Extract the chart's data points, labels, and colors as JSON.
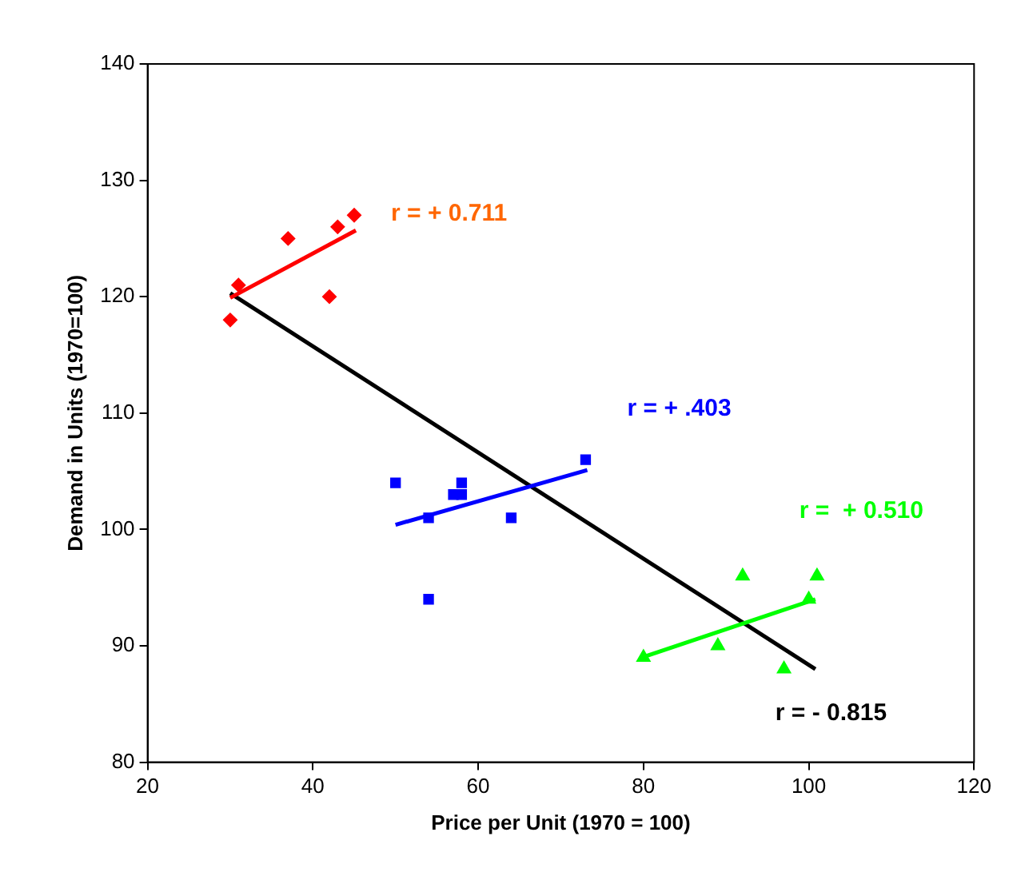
{
  "chart_data": {
    "type": "scatter",
    "xlabel": "Price per Unit (1970 = 100)",
    "ylabel": "Demand in Units (1970=100)",
    "xlim": [
      20,
      120
    ],
    "xticks": [
      20,
      40,
      60,
      80,
      100,
      120
    ],
    "ylim": [
      80,
      140
    ],
    "yticks": [
      80,
      90,
      100,
      110,
      120,
      130,
      140
    ],
    "grid": false,
    "legend": false,
    "series": [
      {
        "marker": "diamond",
        "color": "#ff0000",
        "x": [
          30,
          31,
          37,
          42,
          43,
          45
        ],
        "values": [
          118,
          121,
          125,
          120,
          126,
          127
        ]
      },
      {
        "marker": "square",
        "color": "#0000ff",
        "x": [
          50,
          54,
          54,
          57,
          58,
          58,
          64,
          73
        ],
        "values": [
          104,
          101,
          94,
          103,
          104,
          103,
          101,
          106
        ]
      },
      {
        "marker": "triangle",
        "color": "#00ff00",
        "x": [
          80,
          89,
          92,
          97,
          100,
          101
        ],
        "values": [
          89,
          90,
          96,
          88,
          94,
          96
        ]
      },
      {
        "type": "line",
        "marker": "none",
        "color": "#ff0000",
        "x": [
          30,
          45.2
        ],
        "values": [
          119.9,
          125.7
        ]
      },
      {
        "type": "line",
        "marker": "none",
        "color": "#0000ff",
        "x": [
          50,
          73.2
        ],
        "values": [
          100.4,
          105.1
        ]
      },
      {
        "type": "line",
        "marker": "none",
        "color": "#00ff00",
        "x": [
          79.8,
          100.8
        ],
        "values": [
          89,
          94
        ]
      },
      {
        "type": "line",
        "marker": "none",
        "color": "#000000",
        "x": [
          30,
          100.8
        ],
        "values": [
          120.3,
          88
        ]
      }
    ],
    "annotations": [
      "r = + 0.711",
      "r = + .403",
      "r =  + 0.510",
      "r = - 0.815"
    ]
  }
}
